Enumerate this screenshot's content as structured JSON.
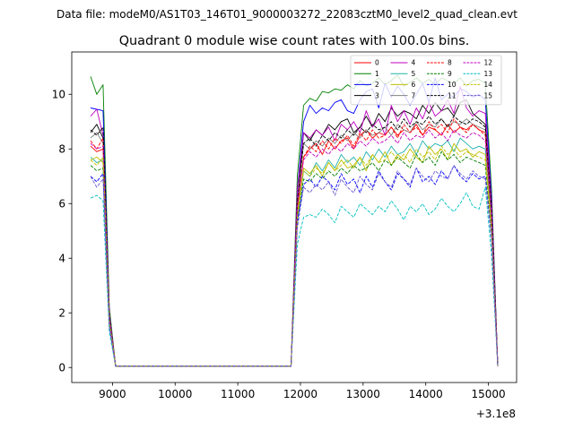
{
  "figure": {
    "suptitle": "Data file: modeM0/AS1T03_146T01_9000003272_22083cztM0_level2_quad_clean.evt",
    "title": "Quadrant 0 module wise count rates with 100.0s bins.",
    "x_offset_label": "+3.1e8"
  },
  "chart_data": {
    "type": "line",
    "title": "Quadrant 0 module wise count rates with 100.0s bins.",
    "xlabel": "",
    "ylabel": "",
    "x_offset": 310000000,
    "xlim": [
      8350,
      15450
    ],
    "ylim": [
      -0.55,
      11.55
    ],
    "xticks": [
      9000,
      10000,
      11000,
      12000,
      13000,
      14000,
      15000
    ],
    "xtick_labels": [
      "9000",
      "10000",
      "11000",
      "12000",
      "13000",
      "14000",
      "15000"
    ],
    "yticks": [
      0,
      2,
      4,
      6,
      8,
      10
    ],
    "ytick_labels": [
      "0",
      "2",
      "4",
      "6",
      "8",
      "10"
    ],
    "grid": false,
    "legend_position": "top-right",
    "legend_columns": 4,
    "segments": [
      {
        "x_start": 8650,
        "step": 100,
        "count": 5
      },
      {
        "x_start": 11850,
        "step": 100,
        "count": 34
      }
    ],
    "series": [
      {
        "name": "0",
        "color": "#ff0000",
        "dash": "solid",
        "width": 0.9,
        "seg1": [
          8.1,
          7.9,
          8.0,
          1.8,
          0.05
        ],
        "seg2": [
          0.05,
          5.8,
          7.7,
          8.0,
          8.2,
          7.8,
          8.3,
          8.0,
          8.3,
          8.4,
          8.0,
          8.5,
          8.7,
          8.4,
          8.6,
          8.5,
          8.8,
          8.5,
          8.7,
          8.6,
          8.9,
          8.5,
          8.8,
          8.7,
          8.5,
          8.9,
          8.6,
          8.8,
          8.7,
          8.9,
          8.7,
          8.6,
          5.5,
          0.05
        ]
      },
      {
        "name": "1",
        "color": "#008000",
        "dash": "solid",
        "width": 0.9,
        "seg1": [
          10.65,
          10.0,
          10.35,
          2.2,
          0.05
        ],
        "seg2": [
          0.05,
          7.0,
          9.6,
          9.85,
          9.75,
          10.1,
          10.05,
          10.2,
          10.15,
          10.35,
          10.2,
          10.5,
          10.3,
          10.4,
          10.6,
          10.35,
          10.5,
          10.7,
          10.3,
          10.45,
          10.6,
          10.4,
          10.55,
          10.35,
          10.6,
          10.5,
          10.4,
          10.6,
          10.3,
          10.5,
          10.55,
          10.4,
          6.5,
          0.05
        ]
      },
      {
        "name": "2",
        "color": "#0000ff",
        "dash": "solid",
        "width": 0.9,
        "seg1": [
          9.5,
          9.45,
          9.4,
          2.0,
          0.05
        ],
        "seg2": [
          0.05,
          6.5,
          9.0,
          9.6,
          9.3,
          9.5,
          9.4,
          9.7,
          9.8,
          9.4,
          9.3,
          9.8,
          10.1,
          10.2,
          9.5,
          10.4,
          9.9,
          10.3,
          10.0,
          9.6,
          10.0,
          10.4,
          9.7,
          10.6,
          9.8,
          10.0,
          9.9,
          10.2,
          10.1,
          9.9,
          10.0,
          9.8,
          6.2,
          0.05
        ]
      },
      {
        "name": "3",
        "color": "#000000",
        "dash": "solid",
        "width": 0.9,
        "seg1": [
          8.6,
          8.9,
          8.4,
          1.9,
          0.05
        ],
        "seg2": [
          0.05,
          6.0,
          8.6,
          8.3,
          8.7,
          8.5,
          8.9,
          8.7,
          9.0,
          9.1,
          8.6,
          8.8,
          9.2,
          8.8,
          9.3,
          9.0,
          9.5,
          9.2,
          9.4,
          9.3,
          9.1,
          9.6,
          9.3,
          9.7,
          9.4,
          9.5,
          9.2,
          9.7,
          9.8,
          9.3,
          9.1,
          8.9,
          5.8,
          0.05
        ]
      },
      {
        "name": "4",
        "color": "#bf00bf",
        "dash": "solid",
        "width": 0.9,
        "seg1": [
          9.2,
          9.45,
          8.5,
          2.0,
          0.05
        ],
        "seg2": [
          0.05,
          6.5,
          8.6,
          8.4,
          8.7,
          8.5,
          8.8,
          8.3,
          8.9,
          8.7,
          9.0,
          8.6,
          9.4,
          8.8,
          9.1,
          8.5,
          9.6,
          9.0,
          9.4,
          8.9,
          9.5,
          9.1,
          9.7,
          9.2,
          9.4,
          9.8,
          9.3,
          10.3,
          9.5,
          9.2,
          9.4,
          9.3,
          6.0,
          0.05
        ]
      },
      {
        "name": "5",
        "color": "#20b2aa",
        "dash": "solid",
        "width": 0.9,
        "seg1": [
          7.7,
          7.5,
          7.6,
          1.7,
          0.05
        ],
        "seg2": [
          0.05,
          5.5,
          7.2,
          7.0,
          7.5,
          7.2,
          7.6,
          7.3,
          7.8,
          7.5,
          7.7,
          7.4,
          7.9,
          7.6,
          8.0,
          7.7,
          8.1,
          7.8,
          7.9,
          8.2,
          7.8,
          8.3,
          8.0,
          8.2,
          8.1,
          8.3,
          7.9,
          8.4,
          8.2,
          8.0,
          8.1,
          8.0,
          5.2,
          0.05
        ]
      },
      {
        "name": "6",
        "color": "#bfbf00",
        "dash": "solid",
        "width": 0.9,
        "seg1": [
          7.6,
          7.7,
          7.5,
          1.7,
          0.05
        ],
        "seg2": [
          0.05,
          5.6,
          7.3,
          7.1,
          7.4,
          7.0,
          7.5,
          7.2,
          7.6,
          7.3,
          7.4,
          7.7,
          7.2,
          7.8,
          7.5,
          7.9,
          7.4,
          7.8,
          7.6,
          8.0,
          7.7,
          7.5,
          8.1,
          7.8,
          8.0,
          7.6,
          8.2,
          7.9,
          8.0,
          7.7,
          7.9,
          7.8,
          5.1,
          0.05
        ]
      },
      {
        "name": "7",
        "color": "#808080",
        "dash": "solid",
        "width": 0.9,
        "seg1": [
          8.4,
          8.6,
          8.2,
          1.9,
          0.05
        ],
        "seg2": [
          0.05,
          6.0,
          8.2,
          8.0,
          8.3,
          8.1,
          8.4,
          8.2,
          8.5,
          8.3,
          8.6,
          8.4,
          8.7,
          8.5,
          8.6,
          8.8,
          8.5,
          8.9,
          8.7,
          8.6,
          9.0,
          8.7,
          8.9,
          8.8,
          9.1,
          8.8,
          9.0,
          8.9,
          9.1,
          8.9,
          8.8,
          8.7,
          5.6,
          0.05
        ]
      },
      {
        "name": "8",
        "color": "#ff0000",
        "dash": "dashed",
        "width": 0.9,
        "seg1": [
          8.3,
          8.0,
          8.4,
          1.8,
          0.05
        ],
        "seg2": [
          0.05,
          5.9,
          7.7,
          8.1,
          7.9,
          8.3,
          8.0,
          8.4,
          8.2,
          8.5,
          8.1,
          8.6,
          8.3,
          8.7,
          8.4,
          8.5,
          8.8,
          8.4,
          8.9,
          8.6,
          8.8,
          8.5,
          9.0,
          8.7,
          8.9,
          8.6,
          9.1,
          8.8,
          8.6,
          8.9,
          8.7,
          8.5,
          5.6,
          0.05
        ]
      },
      {
        "name": "9",
        "color": "#008000",
        "dash": "dashed",
        "width": 0.9,
        "seg1": [
          7.4,
          7.2,
          7.3,
          1.6,
          0.05
        ],
        "seg2": [
          0.05,
          5.4,
          6.9,
          6.8,
          7.1,
          6.9,
          7.2,
          7.0,
          7.3,
          7.1,
          7.4,
          7.2,
          7.3,
          7.5,
          7.2,
          7.6,
          7.4,
          7.7,
          7.5,
          7.3,
          7.8,
          7.5,
          7.7,
          7.4,
          7.9,
          7.6,
          7.8,
          7.5,
          7.7,
          7.6,
          7.5,
          7.4,
          4.9,
          0.05
        ]
      },
      {
        "name": "10",
        "color": "#0000ff",
        "dash": "dashed",
        "width": 0.9,
        "seg1": [
          7.0,
          6.8,
          7.1,
          1.5,
          0.05
        ],
        "seg2": [
          0.05,
          5.3,
          6.7,
          6.9,
          6.6,
          7.0,
          6.8,
          6.5,
          7.1,
          6.7,
          6.9,
          6.4,
          7.0,
          6.6,
          7.2,
          6.8,
          6.5,
          7.1,
          6.9,
          6.6,
          7.3,
          6.8,
          7.0,
          6.7,
          7.2,
          6.9,
          7.4,
          7.0,
          6.8,
          7.1,
          6.9,
          7.0,
          4.7,
          0.05
        ]
      },
      {
        "name": "11",
        "color": "#000000",
        "dash": "dashed",
        "width": 0.9,
        "seg1": [
          8.7,
          8.5,
          8.8,
          1.9,
          0.05
        ],
        "seg2": [
          0.05,
          6.1,
          8.2,
          8.4,
          8.1,
          8.5,
          8.3,
          8.6,
          8.4,
          8.7,
          8.5,
          8.8,
          8.6,
          8.9,
          8.7,
          8.8,
          9.0,
          8.7,
          9.1,
          8.8,
          9.0,
          8.9,
          9.2,
          8.9,
          9.1,
          8.8,
          9.2,
          9.0,
          8.9,
          9.1,
          9.0,
          8.8,
          5.8,
          0.05
        ]
      },
      {
        "name": "12",
        "color": "#bf00bf",
        "dash": "dashed",
        "width": 0.9,
        "seg1": [
          8.2,
          8.0,
          8.1,
          1.8,
          0.05
        ],
        "seg2": [
          0.05,
          5.9,
          7.6,
          7.9,
          7.7,
          8.0,
          7.8,
          8.1,
          7.9,
          8.2,
          8.0,
          8.3,
          8.1,
          8.4,
          8.2,
          8.3,
          8.5,
          8.2,
          8.6,
          8.3,
          8.5,
          8.4,
          8.7,
          8.4,
          8.6,
          8.3,
          8.7,
          8.5,
          8.4,
          8.6,
          8.5,
          8.3,
          5.5,
          0.05
        ]
      },
      {
        "name": "13",
        "color": "#00bfbf",
        "dash": "dashed",
        "width": 0.9,
        "seg1": [
          6.2,
          6.3,
          6.1,
          1.3,
          0.05
        ],
        "seg2": [
          0.05,
          4.5,
          5.5,
          5.6,
          5.5,
          5.8,
          5.6,
          5.3,
          5.9,
          5.7,
          5.5,
          6.0,
          5.8,
          5.6,
          5.9,
          5.7,
          6.1,
          5.8,
          5.4,
          5.9,
          5.7,
          6.0,
          5.6,
          5.8,
          6.2,
          5.9,
          5.7,
          6.0,
          6.4,
          5.9,
          5.8,
          6.6,
          4.1,
          0.05
        ]
      },
      {
        "name": "14",
        "color": "#bfbf00",
        "dash": "dashed",
        "width": 0.9,
        "seg1": [
          7.6,
          7.4,
          7.7,
          1.7,
          0.05
        ],
        "seg2": [
          0.05,
          5.5,
          7.2,
          7.0,
          7.3,
          7.1,
          7.5,
          7.2,
          7.4,
          7.6,
          7.3,
          7.7,
          7.4,
          7.8,
          7.5,
          7.6,
          7.9,
          7.6,
          7.8,
          7.5,
          8.0,
          7.7,
          7.9,
          7.6,
          8.1,
          7.8,
          8.0,
          7.7,
          7.9,
          7.8,
          7.7,
          7.6,
          5.0,
          0.05
        ]
      },
      {
        "name": "15",
        "color": "#6a5acd",
        "dash": "dashed",
        "width": 0.9,
        "seg1": [
          7.0,
          6.6,
          6.9,
          1.5,
          0.05
        ],
        "seg2": [
          0.05,
          5.1,
          6.6,
          6.4,
          6.7,
          6.5,
          6.8,
          6.3,
          6.9,
          6.6,
          6.4,
          7.0,
          6.7,
          6.5,
          7.1,
          6.8,
          6.6,
          7.2,
          6.9,
          6.7,
          7.3,
          7.0,
          6.8,
          7.2,
          7.0,
          6.9,
          7.4,
          7.1,
          6.9,
          7.2,
          7.0,
          6.9,
          4.6,
          0.05
        ]
      }
    ]
  }
}
